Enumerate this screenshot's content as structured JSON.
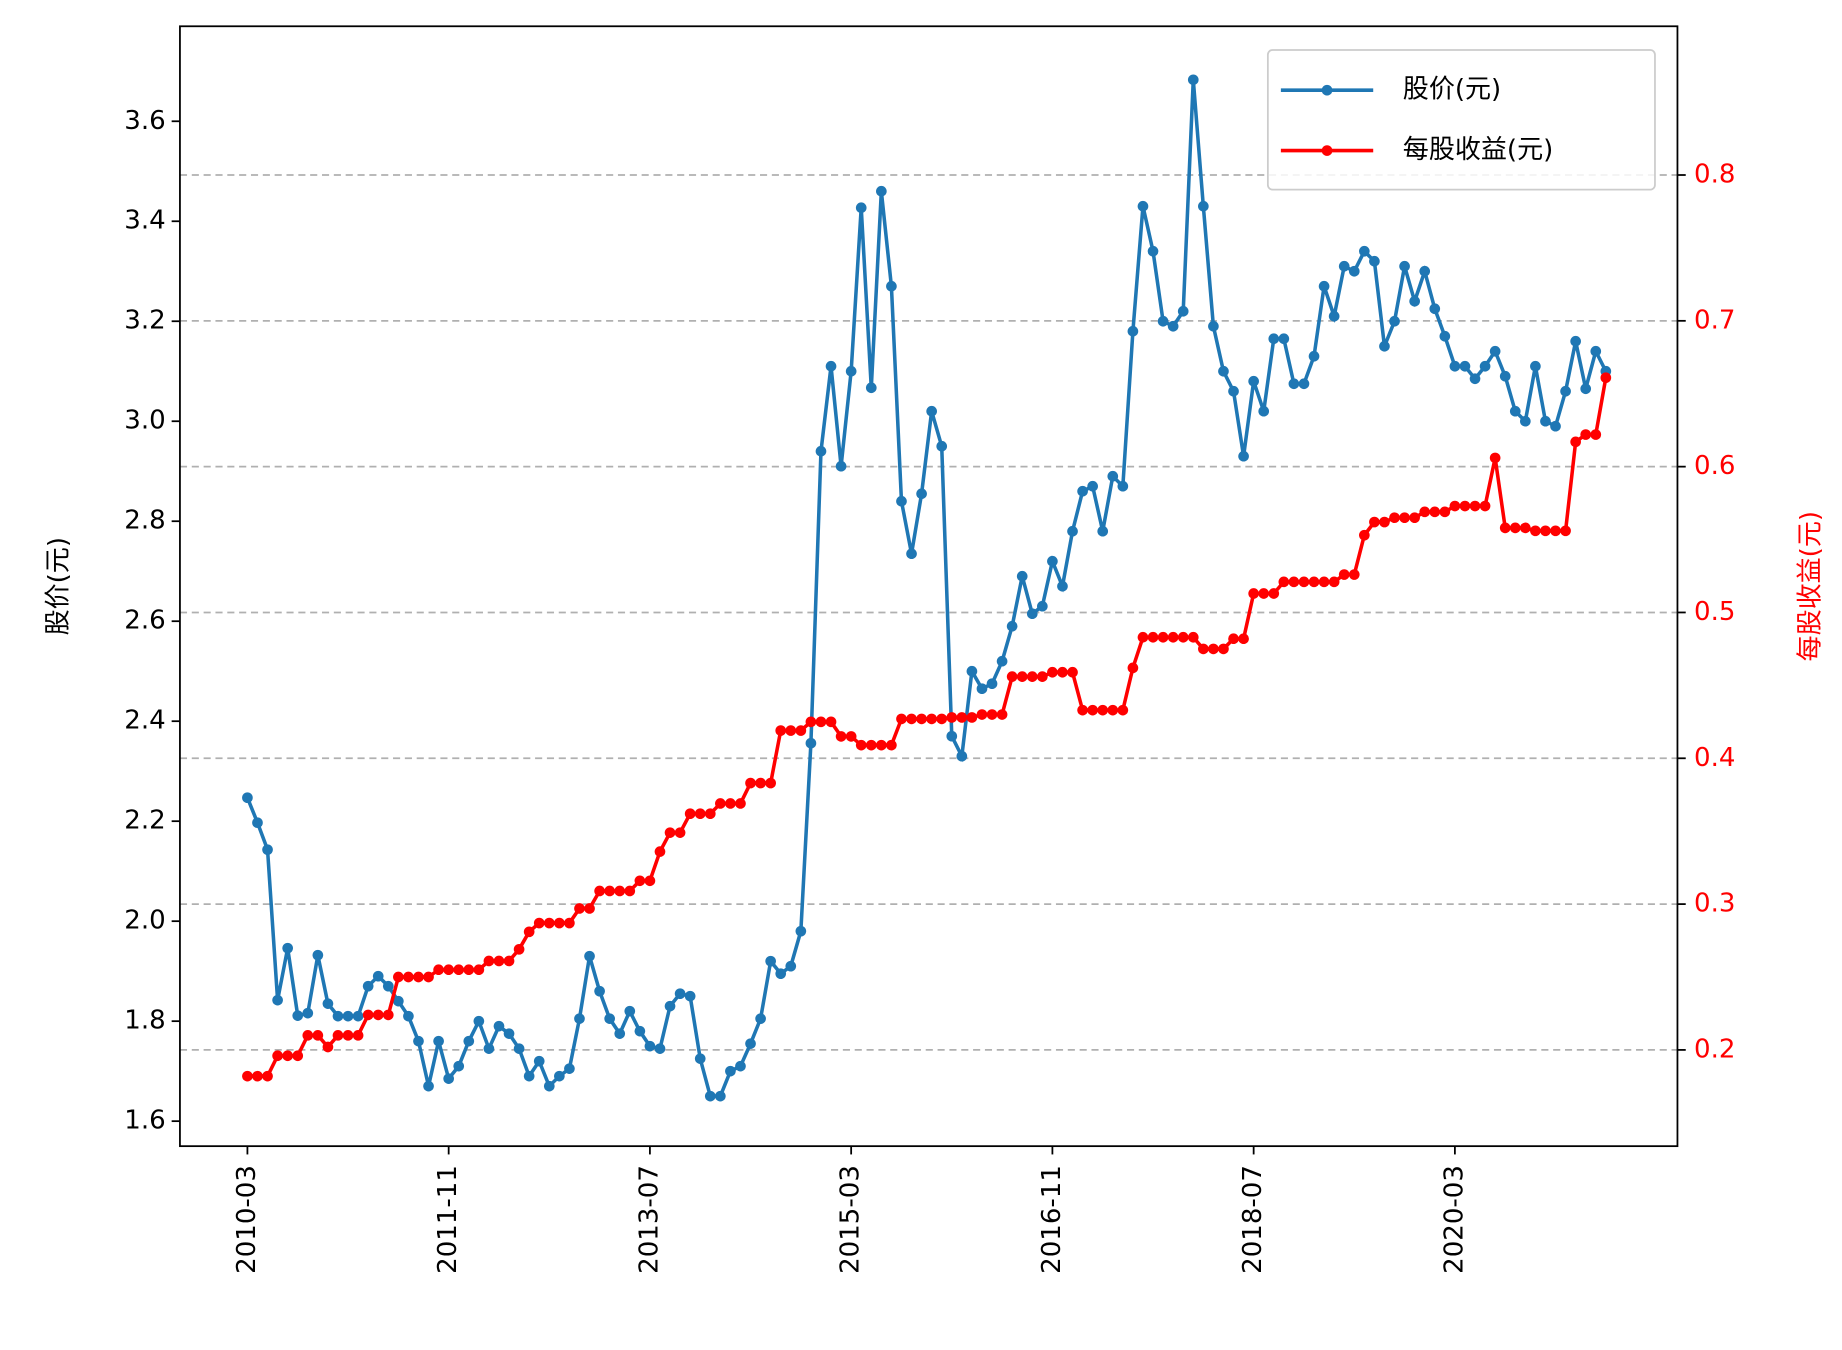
{
  "chart_data": {
    "type": "line",
    "ylabel": "股价(元)",
    "y2label": "每股收益(元)",
    "x": [
      "2010-03",
      "2010-04",
      "2010-05",
      "2010-06",
      "2010-07",
      "2010-08",
      "2010-09",
      "2010-10",
      "2010-11",
      "2010-12",
      "2011-01",
      "2011-02",
      "2011-03",
      "2011-04",
      "2011-05",
      "2011-06",
      "2011-07",
      "2011-08",
      "2011-09",
      "2011-10",
      "2011-11",
      "2011-12",
      "2012-01",
      "2012-02",
      "2012-03",
      "2012-04",
      "2012-05",
      "2012-06",
      "2012-07",
      "2012-08",
      "2012-09",
      "2012-10",
      "2012-11",
      "2012-12",
      "2013-01",
      "2013-02",
      "2013-03",
      "2013-04",
      "2013-05",
      "2013-06",
      "2013-07",
      "2013-08",
      "2013-09",
      "2013-10",
      "2013-11",
      "2013-12",
      "2014-01",
      "2014-02",
      "2014-03",
      "2014-04",
      "2014-05",
      "2014-06",
      "2014-07",
      "2014-08",
      "2014-09",
      "2014-10",
      "2014-11",
      "2014-12",
      "2015-01",
      "2015-02",
      "2015-03",
      "2015-04",
      "2015-05",
      "2015-06",
      "2015-07",
      "2015-08",
      "2015-09",
      "2015-10",
      "2015-11",
      "2015-12",
      "2016-01",
      "2016-02",
      "2016-03",
      "2016-04",
      "2016-05",
      "2016-06",
      "2016-07",
      "2016-08",
      "2016-09",
      "2016-10",
      "2016-11",
      "2016-12",
      "2017-01",
      "2017-02",
      "2017-03",
      "2017-04",
      "2017-05",
      "2017-06",
      "2017-07",
      "2017-08",
      "2017-09",
      "2017-10",
      "2017-11",
      "2017-12",
      "2018-01",
      "2018-02",
      "2018-03",
      "2018-04",
      "2018-05",
      "2018-06",
      "2018-07",
      "2018-08",
      "2018-09",
      "2018-10",
      "2018-11",
      "2018-12",
      "2019-01",
      "2019-02",
      "2019-03",
      "2019-04",
      "2019-05",
      "2019-06",
      "2019-07",
      "2019-08",
      "2019-09",
      "2019-10",
      "2019-11",
      "2019-12",
      "2020-01",
      "2020-02",
      "2020-03",
      "2020-04",
      "2020-05",
      "2020-06",
      "2020-07",
      "2020-08",
      "2020-09",
      "2020-10",
      "2020-11",
      "2020-12",
      "2021-01",
      "2021-02",
      "2021-03",
      "2021-04",
      "2021-05",
      "2021-06"
    ],
    "xticks": [
      "2010-03",
      "2011-11",
      "2013-07",
      "2015-03",
      "2016-11",
      "2018-07",
      "2020-03"
    ],
    "ylim": [
      1.55,
      3.79
    ],
    "yticks": [
      1.6,
      1.8,
      {
        "value": 2,
        "label": "2.0"
      },
      2.2,
      2.4,
      2.6,
      2.8,
      {
        "value": 3,
        "label": "3.0"
      },
      3.2,
      3.4,
      3.6
    ],
    "y2lim": [
      0.134,
      0.902
    ],
    "y2ticks": [
      0.2,
      0.3,
      0.4,
      0.5,
      0.6,
      0.7,
      0.8
    ],
    "grid": true,
    "legend": "upper right",
    "series": [
      {
        "name": "股价(元)",
        "color": "#1f77b4",
        "values": [
          2.247,
          2.197,
          2.143,
          1.842,
          1.946,
          1.811,
          1.816,
          1.932,
          1.835,
          1.81,
          1.81,
          1.81,
          1.87,
          1.89,
          1.87,
          1.84,
          1.81,
          1.76,
          1.67,
          1.76,
          1.685,
          1.71,
          1.76,
          1.8,
          1.745,
          1.79,
          1.775,
          1.745,
          1.69,
          1.72,
          1.67,
          1.69,
          1.705,
          1.805,
          1.93,
          1.86,
          1.805,
          1.775,
          1.82,
          1.78,
          1.75,
          1.745,
          1.83,
          1.855,
          1.85,
          1.725,
          1.65,
          1.65,
          1.7,
          1.71,
          1.755,
          1.805,
          1.92,
          1.895,
          1.91,
          1.98,
          2.356,
          2.94,
          3.11,
          2.91,
          3.1,
          3.427,
          3.067,
          3.46,
          3.27,
          2.84,
          2.735,
          2.855,
          3.02,
          2.95,
          2.37,
          2.33,
          2.5,
          2.465,
          2.475,
          2.52,
          2.59,
          2.69,
          2.615,
          2.63,
          2.72,
          2.67,
          2.78,
          2.86,
          2.87,
          2.78,
          2.89,
          2.87,
          3.18,
          3.43,
          3.34,
          3.2,
          3.19,
          3.22,
          3.683,
          3.43,
          3.19,
          3.1,
          3.06,
          2.93,
          3.08,
          3.02,
          3.165,
          3.165,
          3.075,
          3.075,
          3.13,
          3.27,
          3.21,
          3.31,
          3.3,
          3.34,
          3.32,
          3.15,
          3.2,
          3.31,
          3.24,
          3.3,
          3.225,
          3.17,
          3.11,
          3.11,
          3.085,
          3.11,
          3.14,
          3.09,
          3.02,
          3.0,
          3.11,
          3.0,
          2.99,
          3.06,
          3.16,
          3.065,
          3.14,
          3.1
        ]
      },
      {
        "name": "每股收益(元)",
        "color": "#ff0000",
        "axis": "y2",
        "values": [
          0.182,
          0.182,
          0.182,
          0.196,
          0.196,
          0.196,
          0.21,
          0.21,
          0.202,
          0.21,
          0.21,
          0.21,
          0.224,
          0.224,
          0.224,
          0.25,
          0.25,
          0.25,
          0.25,
          0.255,
          0.255,
          0.255,
          0.255,
          0.255,
          0.261,
          0.261,
          0.261,
          0.269,
          0.281,
          0.287,
          0.287,
          0.287,
          0.287,
          0.297,
          0.297,
          0.309,
          0.309,
          0.309,
          0.309,
          0.316,
          0.316,
          0.336,
          0.349,
          0.349,
          0.362,
          0.362,
          0.362,
          0.369,
          0.369,
          0.369,
          0.383,
          0.383,
          0.383,
          0.419,
          0.419,
          0.419,
          0.425,
          0.425,
          0.425,
          0.415,
          0.415,
          0.409,
          0.409,
          0.409,
          0.409,
          0.427,
          0.427,
          0.427,
          0.427,
          0.427,
          0.428,
          0.428,
          0.428,
          0.43,
          0.43,
          0.43,
          0.456,
          0.456,
          0.456,
          0.456,
          0.459,
          0.459,
          0.459,
          0.433,
          0.433,
          0.433,
          0.433,
          0.433,
          0.462,
          0.483,
          0.483,
          0.483,
          0.483,
          0.483,
          0.483,
          0.475,
          0.475,
          0.475,
          0.482,
          0.482,
          0.513,
          0.513,
          0.513,
          0.521,
          0.521,
          0.521,
          0.521,
          0.521,
          0.521,
          0.526,
          0.526,
          0.553,
          0.562,
          0.562,
          0.565,
          0.565,
          0.565,
          0.569,
          0.569,
          0.569,
          0.573,
          0.573,
          0.573,
          0.573,
          0.606,
          0.558,
          0.558,
          0.558,
          0.556,
          0.556,
          0.556,
          0.556,
          0.617,
          0.622,
          0.622,
          0.661
        ]
      }
    ]
  }
}
